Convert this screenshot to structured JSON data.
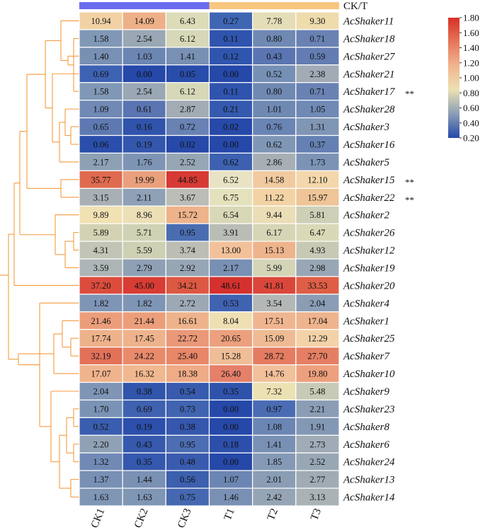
{
  "chart_data": {
    "type": "heatmap",
    "title": "",
    "columns": [
      "CK1",
      "CK2",
      "CK3",
      "T1",
      "T2",
      "T3"
    ],
    "group_bar": {
      "label": "CK/T",
      "groups": [
        {
          "name": "CK",
          "columns": [
            "CK1",
            "CK2",
            "CK3"
          ],
          "color": "#6b6bf0"
        },
        {
          "name": "T",
          "columns": [
            "T1",
            "T2",
            "T3"
          ],
          "color": "#f7c77e"
        }
      ]
    },
    "rows": [
      {
        "gene": "AcShaker11",
        "values": [
          10.94,
          14.09,
          6.43,
          0.27,
          7.78,
          9.3
        ],
        "colors": [
          "#f2d2a5",
          "#eeb088",
          "#dcdcb9",
          "#3f66b3",
          "#e4ddb7",
          "#efdcad"
        ],
        "mark": ""
      },
      {
        "gene": "AcShaker18",
        "values": [
          1.58,
          2.54,
          6.12,
          0.11,
          0.8,
          0.71
        ],
        "colors": [
          "#8098b5",
          "#9aa7b4",
          "#d6d8b8",
          "#2f54ae",
          "#6f89b3",
          "#6982b3"
        ],
        "mark": ""
      },
      {
        "gene": "AcShaker27",
        "values": [
          1.4,
          1.03,
          1.41,
          0.12,
          0.43,
          0.59
        ],
        "colors": [
          "#7890b4",
          "#6c86b3",
          "#7890b4",
          "#2f55ae",
          "#5a75b1",
          "#637db2"
        ],
        "mark": ""
      },
      {
        "gene": "AcShaker21",
        "values": [
          0.69,
          0.0,
          0.05,
          0.0,
          0.52,
          2.38
        ],
        "colors": [
          "#3e62b3",
          "#2548a9",
          "#294dab",
          "#2548a9",
          "#7690b5",
          "#a1aab5"
        ],
        "mark": ""
      },
      {
        "gene": "AcShaker17",
        "values": [
          1.58,
          2.54,
          6.12,
          0.11,
          0.8,
          0.71
        ],
        "colors": [
          "#8098b5",
          "#9aa7b4",
          "#d6d8b8",
          "#2f54ae",
          "#6f89b3",
          "#6982b3"
        ],
        "mark": "**"
      },
      {
        "gene": "AcShaker28",
        "values": [
          1.09,
          0.61,
          2.87,
          0.21,
          1.01,
          1.05
        ],
        "colors": [
          "#7089b5",
          "#5a75b1",
          "#a3acb5",
          "#3559ae",
          "#6f89b3",
          "#7089b5"
        ],
        "mark": ""
      },
      {
        "gene": "AcShaker3",
        "values": [
          0.65,
          0.16,
          0.72,
          0.02,
          0.76,
          1.31
        ],
        "colors": [
          "#5e79b1",
          "#3054ac",
          "#6882b3",
          "#2749a9",
          "#6a84b4",
          "#8096b5"
        ],
        "mark": ""
      },
      {
        "gene": "AcShaker16",
        "values": [
          0.06,
          0.19,
          0.02,
          0.0,
          0.62,
          0.37
        ],
        "colors": [
          "#2b4eab",
          "#3457ad",
          "#2749a9",
          "#2548a9",
          "#7f96b5",
          "#6580b2"
        ],
        "mark": ""
      },
      {
        "gene": "AcShaker5",
        "values": [
          2.17,
          1.76,
          2.52,
          0.62,
          2.86,
          1.73
        ],
        "colors": [
          "#8da0b4",
          "#7e94b5",
          "#97a6b4",
          "#3d61b0",
          "#a7afb5",
          "#7c93b5"
        ],
        "mark": ""
      },
      {
        "gene": "AcShaker15",
        "values": [
          35.77,
          19.99,
          44.85,
          6.52,
          14.58,
          12.1
        ],
        "colors": [
          "#e06a4f",
          "#eaa07c",
          "#d73a34",
          "#e8e3c4",
          "#f1caa0",
          "#f4d7ac"
        ],
        "mark": "**"
      },
      {
        "gene": "AcShaker22",
        "values": [
          3.15,
          2.11,
          3.67,
          6.75,
          11.22,
          15.97
        ],
        "colors": [
          "#a8b0b6",
          "#8ea1b6",
          "#bbbdb6",
          "#e4e1bd",
          "#f3d3a4",
          "#efc497"
        ],
        "mark": "**"
      },
      {
        "gene": "AcShaker2",
        "values": [
          9.89,
          8.96,
          15.72,
          6.54,
          9.44,
          5.81
        ],
        "colors": [
          "#f1e1b3",
          "#ecdfb6",
          "#eeb38a",
          "#d8d8b7",
          "#ebddb5",
          "#cdd0b6"
        ],
        "mark": ""
      },
      {
        "gene": "AcShaker26",
        "values": [
          5.89,
          5.71,
          0.95,
          3.91,
          6.17,
          6.47
        ],
        "colors": [
          "#d3d3b4",
          "#d0d2b4",
          "#4a6db2",
          "#b9bdb5",
          "#d6d6b6",
          "#dad9b7"
        ],
        "mark": ""
      },
      {
        "gene": "AcShaker12",
        "values": [
          4.31,
          5.59,
          3.74,
          13.0,
          15.13,
          4.93
        ],
        "colors": [
          "#c2c4b5",
          "#ced0b4",
          "#bcbeb5",
          "#f2c19a",
          "#eeb48c",
          "#c7c9b5"
        ],
        "mark": ""
      },
      {
        "gene": "AcShaker19",
        "values": [
          3.59,
          2.79,
          2.92,
          2.17,
          5.99,
          2.98
        ],
        "colors": [
          "#aeb5b7",
          "#8fa0b5",
          "#97a6b5",
          "#7890b4",
          "#d4d5b7",
          "#98a6b5"
        ],
        "mark": ""
      },
      {
        "gene": "AcShaker20",
        "values": [
          37.2,
          45.0,
          34.21,
          48.61,
          41.81,
          33.53
        ],
        "colors": [
          "#dc4c3d",
          "#d83c34",
          "#dd5843",
          "#d4312e",
          "#da473a",
          "#df5e46"
        ],
        "mark": ""
      },
      {
        "gene": "AcShaker4",
        "values": [
          1.82,
          1.82,
          2.72,
          0.53,
          3.54,
          2.04
        ],
        "colors": [
          "#7f95b5",
          "#7f95b5",
          "#9ca9b5",
          "#3f62b1",
          "#b3b8b6",
          "#8a9db5"
        ],
        "mark": ""
      },
      {
        "gene": "AcShaker1",
        "values": [
          21.46,
          21.44,
          16.61,
          8.04,
          17.51,
          17.04
        ],
        "colors": [
          "#ec9e7b",
          "#ec9e7b",
          "#eeb38c",
          "#efe0b4",
          "#efb690",
          "#eeb48d"
        ],
        "mark": ""
      },
      {
        "gene": "AcShaker25",
        "values": [
          17.74,
          17.45,
          22.72,
          20.65,
          15.09,
          12.29
        ],
        "colors": [
          "#eeb28b",
          "#eeb38c",
          "#ea9878",
          "#eca07d",
          "#efbb94",
          "#f4d2a8"
        ],
        "mark": ""
      },
      {
        "gene": "AcShaker7",
        "values": [
          32.19,
          24.22,
          25.4,
          15.28,
          28.72,
          27.7
        ],
        "colors": [
          "#e3715a",
          "#e98a6b",
          "#e88669",
          "#efbd96",
          "#e57c61",
          "#e57f63"
        ],
        "mark": ""
      },
      {
        "gene": "AcShaker10",
        "values": [
          17.07,
          16.32,
          18.38,
          26.4,
          14.76,
          19.8
        ],
        "colors": [
          "#f0b48d",
          "#f1b890",
          "#efab86",
          "#e5806a",
          "#f2c09b",
          "#eda07d"
        ],
        "mark": ""
      },
      {
        "gene": "AcShaker9",
        "values": [
          2.04,
          0.38,
          0.54,
          0.35,
          7.32,
          5.48
        ],
        "colors": [
          "#7f95b5",
          "#3055ab",
          "#385bae",
          "#2f53ab",
          "#ece1b2",
          "#c7cab6"
        ],
        "mark": ""
      },
      {
        "gene": "AcShaker23",
        "values": [
          1.7,
          0.69,
          0.73,
          0.0,
          0.97,
          2.21
        ],
        "colors": [
          "#7a92b4",
          "#3f62b0",
          "#4064b0",
          "#2548a9",
          "#4a6cb2",
          "#8a9db5"
        ],
        "mark": ""
      },
      {
        "gene": "AcShaker8",
        "values": [
          0.52,
          0.19,
          0.38,
          0.0,
          1.08,
          1.91
        ],
        "colors": [
          "#3a5daf",
          "#2c4fab",
          "#3557ad",
          "#2548a9",
          "#6c86b4",
          "#8398b5"
        ],
        "mark": ""
      },
      {
        "gene": "AcShaker6",
        "values": [
          2.2,
          0.43,
          0.95,
          0.18,
          1.41,
          2.73
        ],
        "colors": [
          "#8fa1b4",
          "#3658ad",
          "#4c6db2",
          "#2c4fab",
          "#7890b4",
          "#9fabb6"
        ],
        "mark": ""
      },
      {
        "gene": "AcShaker24",
        "values": [
          1.32,
          0.35,
          0.48,
          0.0,
          1.85,
          2.52
        ],
        "colors": [
          "#7089b5",
          "#3458ad",
          "#395bae",
          "#2548a9",
          "#8499b5",
          "#98a7b4"
        ],
        "mark": ""
      },
      {
        "gene": "AcShaker13",
        "values": [
          1.37,
          1.44,
          0.56,
          1.07,
          2.01,
          2.77
        ],
        "colors": [
          "#7890b4",
          "#7a91b4",
          "#3c5fae",
          "#6c86b3",
          "#8a9db5",
          "#a0abb5"
        ],
        "mark": ""
      },
      {
        "gene": "AcShaker14",
        "values": [
          1.63,
          1.63,
          0.75,
          1.46,
          2.42,
          3.13
        ],
        "colors": [
          "#8096b5",
          "#8096b5",
          "#4568b1",
          "#7990b5",
          "#96a5b5",
          "#aab2b6"
        ],
        "mark": ""
      }
    ],
    "colorbar": {
      "min": 0.2,
      "max": 1.8,
      "ticks": [
        "1.80",
        "1.60",
        "1.40",
        "1.20",
        "1.00",
        "0.80",
        "0.60",
        "0.40",
        "0.20"
      ],
      "colors": [
        "#d73027",
        "#e6755a",
        "#f1b58e",
        "#ece0b4",
        "#8a9db5",
        "#2548a9"
      ]
    },
    "dendrogram_color": "#f59a3c"
  }
}
